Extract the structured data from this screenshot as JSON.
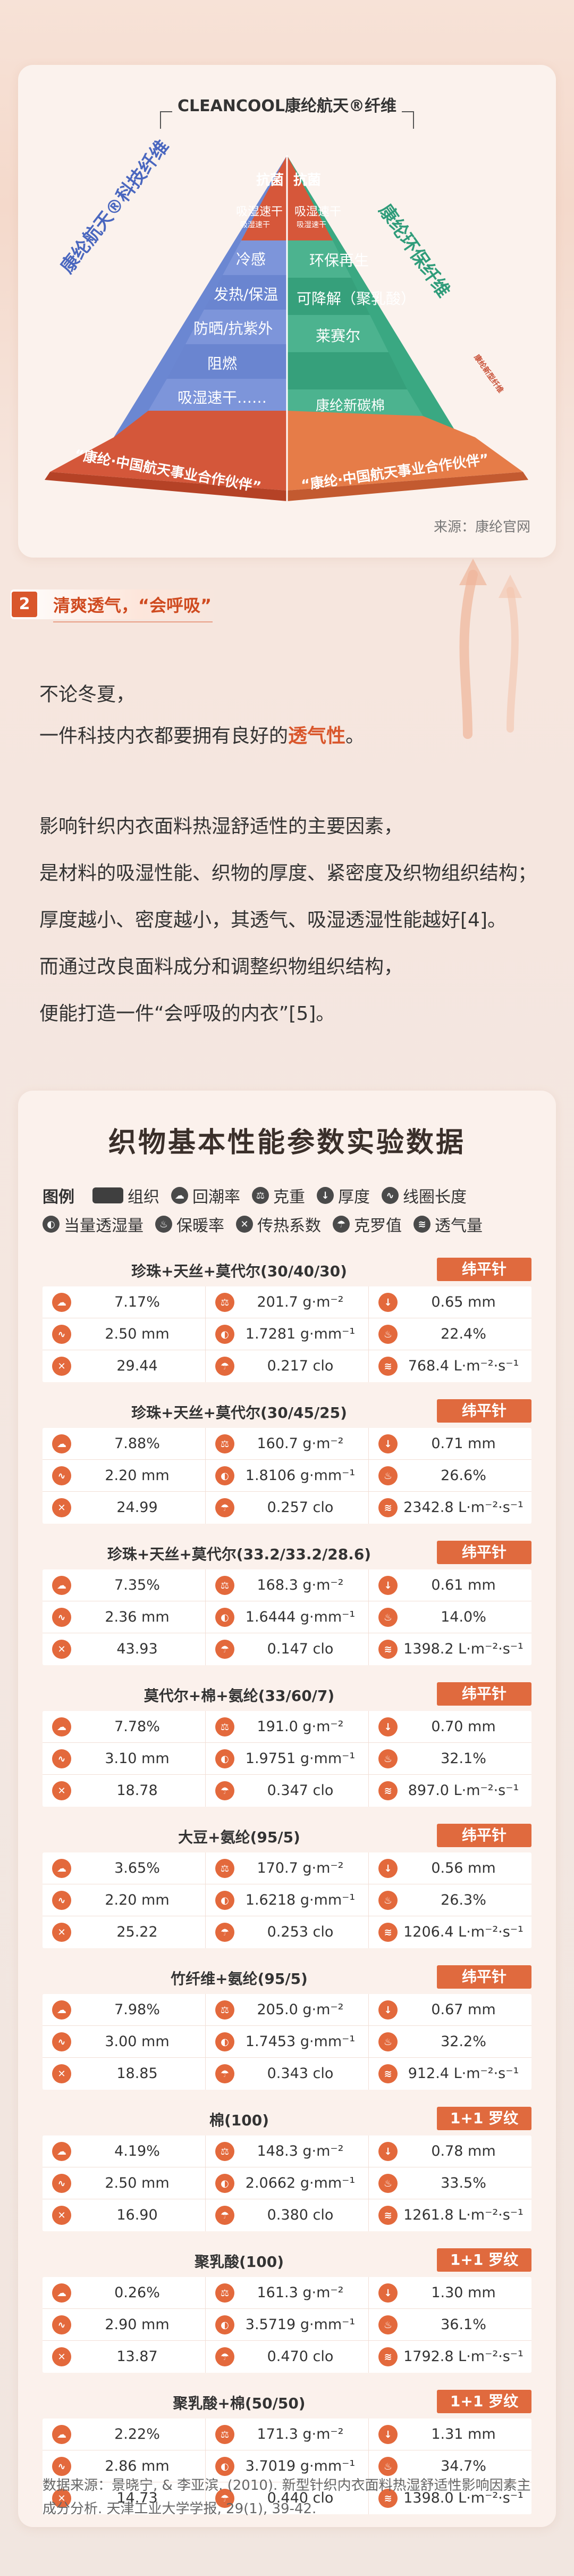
{
  "pyramid": {
    "title": "CLEANCOOL康纶航天®纤维",
    "left_side_label": "康纶航天®科技纤维",
    "right_side_label": "康纶环保纤维",
    "right_small_label": "康纶新型纤维",
    "left_layers": [
      "抗菌",
      "吸湿速干",
      "冷感",
      "发热/保温",
      "防晒/抗紫外",
      "阻燃",
      "吸湿速干……"
    ],
    "left_layer_sub": "吸湿速干",
    "right_layers": [
      "抗菌",
      "吸湿速干",
      "环保再生",
      "可降解（聚乳酸）",
      "莱赛尔",
      "康纶新碳棉"
    ],
    "right_layer_sub": "吸湿速干",
    "base_left": "“康纶·中国航天事业合作伙伴”",
    "base_right": "“康纶·中国航天事业合作伙伴”",
    "source": "来源：康纶官网",
    "colors": {
      "blue": "#5b79c8",
      "green": "#2f9c7a",
      "red": "#d4573a",
      "orange": "#e57b47"
    }
  },
  "section": {
    "number": "2",
    "title": "清爽透气，“会呼吸”"
  },
  "intro": {
    "line1": "不论冬夏，",
    "line2_pre": "一件科技内衣都要拥有良好的",
    "line2_highlight": "透气性",
    "line2_post": "。"
  },
  "body": {
    "line1": "影响针织内衣面料热湿舒适性的主要因素，",
    "line2": "是材料的吸湿性能、织物的厚度、紧密度及织物组织结构；",
    "line3": "厚度越小、密度越小，其透气、吸湿透湿性能越好[4]。",
    "line4": "而通过改良面料成分和调整织物组织结构，",
    "line5": "便能打造一件“会呼吸的内衣”[5]。"
  },
  "table": {
    "title": "织物基本性能参数实验数据",
    "legend_label": "图例",
    "legend": [
      {
        "icon": "rect",
        "label": "组织"
      },
      {
        "icon": "moisture-regain-icon",
        "label": "回潮率"
      },
      {
        "icon": "gram-weight-icon",
        "label": "克重"
      },
      {
        "icon": "thickness-icon",
        "label": "厚度"
      },
      {
        "icon": "coil-length-icon",
        "label": "线圈长度"
      },
      {
        "icon": "moisture-permeability-icon",
        "label": "当量透湿量"
      },
      {
        "icon": "heat-retention-icon",
        "label": "保暖率"
      },
      {
        "icon": "heat-transfer-icon",
        "label": "传热系数"
      },
      {
        "icon": "clo-icon",
        "label": "克罗值"
      },
      {
        "icon": "air-permeability-icon",
        "label": "透气量"
      }
    ],
    "samples": [
      {
        "name": "珍珠+天丝+莫代尔(30/40/30)",
        "tag": "纬平针",
        "cells": [
          "7.17%",
          "201.7 g·m⁻²",
          "0.65 mm",
          "2.50 mm",
          "1.7281 g·mm⁻¹",
          "22.4%",
          "29.44",
          "0.217 clo",
          "768.4 L·m⁻²·s⁻¹"
        ]
      },
      {
        "name": "珍珠+天丝+莫代尔(30/45/25)",
        "tag": "纬平针",
        "cells": [
          "7.88%",
          "160.7 g·m⁻²",
          "0.71 mm",
          "2.20 mm",
          "1.8106 g·mm⁻¹",
          "26.6%",
          "24.99",
          "0.257 clo",
          "2342.8 L·m⁻²·s⁻¹"
        ]
      },
      {
        "name": "珍珠+天丝+莫代尔(33.2/33.2/28.6)",
        "tag": "纬平针",
        "cells": [
          "7.35%",
          "168.3 g·m⁻²",
          "0.61 mm",
          "2.36 mm",
          "1.6444 g·mm⁻¹",
          "14.0%",
          "43.93",
          "0.147 clo",
          "1398.2 L·m⁻²·s⁻¹"
        ]
      },
      {
        "name": "莫代尔+棉+氨纶(33/60/7)",
        "tag": "纬平针",
        "cells": [
          "7.78%",
          "191.0 g·m⁻²",
          "0.70 mm",
          "3.10 mm",
          "1.9751 g·mm⁻¹",
          "32.1%",
          "18.78",
          "0.347 clo",
          "897.0 L·m⁻²·s⁻¹"
        ]
      },
      {
        "name": "大豆+氨纶(95/5)",
        "tag": "纬平针",
        "cells": [
          "3.65%",
          "170.7 g·m⁻²",
          "0.56 mm",
          "2.20 mm",
          "1.6218 g·mm⁻¹",
          "26.3%",
          "25.22",
          "0.253 clo",
          "1206.4 L·m⁻²·s⁻¹"
        ]
      },
      {
        "name": "竹纤维+氨纶(95/5)",
        "tag": "纬平针",
        "cells": [
          "7.98%",
          "205.0 g·m⁻²",
          "0.67 mm",
          "3.00 mm",
          "1.7453 g·mm⁻¹",
          "32.2%",
          "18.85",
          "0.343 clo",
          "912.4 L·m⁻²·s⁻¹"
        ]
      },
      {
        "name": "棉(100)",
        "tag": "1+1 罗纹",
        "cells": [
          "4.19%",
          "148.3 g·m⁻²",
          "0.78 mm",
          "2.50 mm",
          "2.0662 g·mm⁻¹",
          "33.5%",
          "16.90",
          "0.380 clo",
          "1261.8 L·m⁻²·s⁻¹"
        ]
      },
      {
        "name": "聚乳酸(100)",
        "tag": "1+1 罗纹",
        "cells": [
          "0.26%",
          "161.3 g·m⁻²",
          "1.30 mm",
          "2.90 mm",
          "3.5719 g·mm⁻¹",
          "36.1%",
          "13.87",
          "0.470 clo",
          "1792.8 L·m⁻²·s⁻¹"
        ]
      },
      {
        "name": "聚乳酸+棉(50/50)",
        "tag": "1+1 罗纹",
        "cells": [
          "2.22%",
          "171.3 g·m⁻²",
          "1.31 mm",
          "2.86 mm",
          "3.7019 g·mm⁻¹",
          "34.7%",
          "14.73",
          "0.440 clo",
          "1398.0 L·m⁻²·s⁻¹"
        ]
      }
    ],
    "reference": "数据来源：景晓宁, & 李亚滨. (2010). 新型针织内衣面料热湿舒适性影响因素主成分分析. 天津工业大学学报, 29(1), 39-42."
  }
}
